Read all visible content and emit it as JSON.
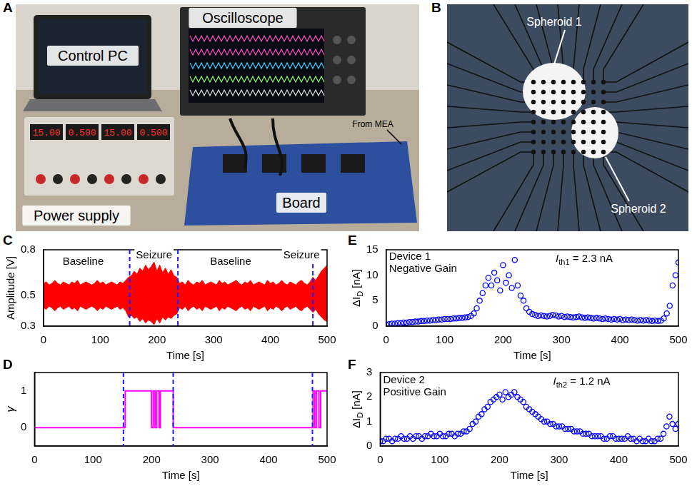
{
  "photo_panels": [
    {
      "panel": "A",
      "labels": {
        "pc": "Control PC",
        "scope": "Oscilloscope",
        "supply": "Power supply",
        "board": "Board",
        "mea": "From MEA"
      },
      "power_supply_display": [
        "15.00",
        "0.500",
        "15.00",
        "0.500"
      ]
    },
    {
      "panel": "B",
      "labels": {
        "s1": "Spheroid 1",
        "s2": "Spheroid 2"
      }
    }
  ],
  "chart_data": [
    {
      "panel": "C",
      "type": "line",
      "x_label": "Time [s]",
      "y_label": {
        "main": "Amplitude [V]"
      },
      "x": [
        0,
        5,
        10,
        15,
        20,
        25,
        30,
        35,
        40,
        45,
        50,
        55,
        60,
        65,
        70,
        75,
        80,
        85,
        90,
        95,
        100,
        105,
        110,
        115,
        120,
        125,
        130,
        135,
        140,
        145,
        150,
        155,
        160,
        165,
        170,
        175,
        180,
        185,
        190,
        195,
        200,
        205,
        210,
        215,
        220,
        225,
        230,
        235,
        240,
        245,
        250,
        255,
        260,
        265,
        270,
        275,
        280,
        285,
        290,
        295,
        300,
        305,
        310,
        315,
        320,
        325,
        330,
        335,
        340,
        345,
        350,
        355,
        360,
        365,
        370,
        375,
        380,
        385,
        390,
        395,
        400,
        405,
        410,
        415,
        420,
        425,
        430,
        435,
        440,
        445,
        450,
        455,
        460,
        465,
        470,
        475,
        480,
        485,
        490,
        495,
        500
      ],
      "series": [
        {
          "type": "line",
          "color": "#ff0000",
          "line_style": "solid",
          "values": [
            0.58,
            0.59,
            0.57,
            0.58,
            0.6,
            0.58,
            0.57,
            0.59,
            0.58,
            0.57,
            0.59,
            0.58,
            0.6,
            0.57,
            0.58,
            0.59,
            0.58,
            0.57,
            0.58,
            0.6,
            0.58,
            0.59,
            0.57,
            0.58,
            0.59,
            0.58,
            0.57,
            0.59,
            0.58,
            0.6,
            0.62,
            0.63,
            0.66,
            0.64,
            0.68,
            0.66,
            0.7,
            0.67,
            0.69,
            0.72,
            0.66,
            0.7,
            0.65,
            0.68,
            0.64,
            0.67,
            0.63,
            0.62,
            0.58,
            0.59,
            0.57,
            0.6,
            0.58,
            0.57,
            0.59,
            0.58,
            0.6,
            0.57,
            0.58,
            0.59,
            0.58,
            0.57,
            0.6,
            0.58,
            0.59,
            0.57,
            0.58,
            0.59,
            0.6,
            0.58,
            0.57,
            0.59,
            0.58,
            0.6,
            0.57,
            0.58,
            0.59,
            0.58,
            0.57,
            0.6,
            0.58,
            0.59,
            0.57,
            0.58,
            0.6,
            0.58,
            0.57,
            0.59,
            0.58,
            0.57,
            0.59,
            0.6,
            0.58,
            0.57,
            0.59,
            0.62,
            0.6,
            0.63,
            0.66,
            0.68,
            0.7
          ]
        },
        {
          "type": "area",
          "color": "#ff0000",
          "line_style": "solid",
          "values": [
            0.42,
            0.41,
            0.43,
            0.42,
            0.4,
            0.42,
            0.43,
            0.41,
            0.42,
            0.43,
            0.41,
            0.42,
            0.4,
            0.43,
            0.42,
            0.41,
            0.42,
            0.43,
            0.42,
            0.4,
            0.42,
            0.41,
            0.43,
            0.42,
            0.41,
            0.42,
            0.43,
            0.41,
            0.42,
            0.4,
            0.36,
            0.37,
            0.35,
            0.36,
            0.33,
            0.35,
            0.32,
            0.34,
            0.33,
            0.31,
            0.35,
            0.32,
            0.36,
            0.34,
            0.36,
            0.35,
            0.37,
            0.38,
            0.42,
            0.41,
            0.43,
            0.4,
            0.42,
            0.43,
            0.41,
            0.42,
            0.4,
            0.43,
            0.42,
            0.41,
            0.42,
            0.43,
            0.4,
            0.42,
            0.41,
            0.43,
            0.42,
            0.41,
            0.4,
            0.42,
            0.43,
            0.41,
            0.42,
            0.4,
            0.43,
            0.42,
            0.41,
            0.42,
            0.43,
            0.4,
            0.42,
            0.41,
            0.43,
            0.42,
            0.4,
            0.42,
            0.43,
            0.41,
            0.42,
            0.43,
            0.41,
            0.4,
            0.42,
            0.43,
            0.41,
            0.39,
            0.41,
            0.38,
            0.36,
            0.34,
            0.33
          ]
        }
      ],
      "xlim": [
        0,
        500
      ],
      "xticks": [
        0,
        100,
        200,
        300,
        400,
        500
      ],
      "ylim": [
        0.3,
        0.8
      ],
      "yticks": [
        0.3,
        0.5,
        0.8
      ],
      "grid": false,
      "event_lines": [
        152,
        237,
        475
      ],
      "annotations": [
        {
          "text": "Baseline",
          "x": 70,
          "y": 0.72
        },
        {
          "text": "Seizure",
          "x": 195,
          "y": 0.765
        },
        {
          "text": "Baseline",
          "x": 330,
          "y": 0.72
        },
        {
          "text": "Seizure",
          "x": 455,
          "y": 0.765
        }
      ]
    },
    {
      "panel": "D",
      "type": "line",
      "x_label": "Time [s]",
      "y_label": {
        "main": "γ"
      },
      "x": [
        0,
        155,
        155,
        200,
        200,
        203,
        203,
        206,
        206,
        209,
        209,
        213,
        213,
        215,
        215,
        237,
        237,
        476,
        476,
        479,
        479,
        482,
        482,
        486,
        486,
        489,
        489,
        500
      ],
      "series": [
        {
          "type": "line",
          "color": "#ff00ff",
          "line_style": "solid",
          "values": [
            0,
            0,
            1,
            1,
            0,
            0,
            1,
            1,
            0,
            0,
            1,
            1,
            0,
            0,
            1,
            1,
            0,
            0,
            1,
            1,
            0,
            0,
            1,
            1,
            0,
            0,
            1,
            1
          ]
        }
      ],
      "xlim": [
        0,
        500
      ],
      "xticks": [
        0,
        100,
        200,
        300,
        400,
        500
      ],
      "ylim": [
        -0.5,
        1.5
      ],
      "yticks": [
        0,
        1
      ],
      "grid": false,
      "event_lines": [
        152,
        237,
        475
      ]
    },
    {
      "panel": "E",
      "type": "scatter",
      "x_label": "Time [s]",
      "y_label": {
        "main": "ΔI",
        "sub": "D",
        "rest": " [nA]"
      },
      "x": [
        0,
        5,
        10,
        15,
        20,
        25,
        30,
        35,
        40,
        45,
        50,
        55,
        60,
        65,
        70,
        75,
        80,
        85,
        90,
        95,
        100,
        105,
        110,
        115,
        120,
        125,
        130,
        135,
        140,
        145,
        150,
        155,
        160,
        165,
        170,
        175,
        180,
        185,
        190,
        195,
        200,
        205,
        210,
        215,
        220,
        225,
        230,
        235,
        240,
        245,
        250,
        255,
        260,
        265,
        270,
        275,
        280,
        285,
        290,
        295,
        300,
        305,
        310,
        315,
        320,
        325,
        330,
        335,
        340,
        345,
        350,
        355,
        360,
        365,
        370,
        375,
        380,
        385,
        390,
        395,
        400,
        405,
        410,
        415,
        420,
        425,
        430,
        435,
        440,
        445,
        450,
        455,
        460,
        465,
        470,
        475,
        480,
        485,
        490,
        495,
        500
      ],
      "series": [
        {
          "color": "#0000ff",
          "marker": "circle",
          "values": [
            0.3,
            0.4,
            0.5,
            0.5,
            0.6,
            0.6,
            0.7,
            0.7,
            0.8,
            0.8,
            0.9,
            0.9,
            1.0,
            1.0,
            1.1,
            1.1,
            1.2,
            1.2,
            1.3,
            1.3,
            1.4,
            1.4,
            1.4,
            1.5,
            1.5,
            1.6,
            1.6,
            1.7,
            1.8,
            2.0,
            2.5,
            3.5,
            5.0,
            6.5,
            8.0,
            9.5,
            8.0,
            10.5,
            9.0,
            7.0,
            12.0,
            8.5,
            10.0,
            7.5,
            13.0,
            8.0,
            6.0,
            5.0,
            3.5,
            2.8,
            2.4,
            2.2,
            2.0,
            2.1,
            2.0,
            1.9,
            2.0,
            2.2,
            2.1,
            1.9,
            2.0,
            1.8,
            1.9,
            1.8,
            1.7,
            1.8,
            1.9,
            1.7,
            1.6,
            1.7,
            1.6,
            1.5,
            1.6,
            1.5,
            1.4,
            1.5,
            1.4,
            1.3,
            1.4,
            1.3,
            1.4,
            1.2,
            1.3,
            1.2,
            1.3,
            1.2,
            1.1,
            1.2,
            1.1,
            1.2,
            1.1,
            1.0,
            1.1,
            1.0,
            1.1,
            1.5,
            2.5,
            4.0,
            8.0,
            10.0,
            12.5
          ]
        }
      ],
      "xlim": [
        0,
        500
      ],
      "xticks": [
        0,
        100,
        200,
        300,
        400,
        500
      ],
      "ylim": [
        0,
        15
      ],
      "yticks": [
        0,
        5,
        10,
        15
      ],
      "grid": false,
      "annotations": [
        {
          "lines": [
            "Device 1",
            "Negative Gain"
          ],
          "x": 5,
          "y": 14.6
        },
        {
          "parts": [
            "I",
            "th1",
            " = 2.3 nA"
          ],
          "x": 290,
          "y": 14.6
        }
      ]
    },
    {
      "panel": "F",
      "type": "scatter",
      "x_label": "Time [s]",
      "y_label": {
        "main": "ΔI",
        "sub": "D",
        "rest": " [nA]"
      },
      "x": [
        0,
        5,
        10,
        15,
        20,
        25,
        30,
        35,
        40,
        45,
        50,
        55,
        60,
        65,
        70,
        75,
        80,
        85,
        90,
        95,
        100,
        105,
        110,
        115,
        120,
        125,
        130,
        135,
        140,
        145,
        150,
        155,
        160,
        165,
        170,
        175,
        180,
        185,
        190,
        195,
        200,
        205,
        210,
        215,
        220,
        225,
        230,
        235,
        240,
        245,
        250,
        255,
        260,
        265,
        270,
        275,
        280,
        285,
        290,
        295,
        300,
        305,
        310,
        315,
        320,
        325,
        330,
        335,
        340,
        345,
        350,
        355,
        360,
        365,
        370,
        375,
        380,
        385,
        390,
        395,
        400,
        405,
        410,
        415,
        420,
        425,
        430,
        435,
        440,
        445,
        450,
        455,
        460,
        465,
        470,
        475,
        480,
        485,
        490,
        495,
        500
      ],
      "series": [
        {
          "color": "#0000ff",
          "marker": "circle",
          "values": [
            0.2,
            0.2,
            0.3,
            0.3,
            0.2,
            0.3,
            0.3,
            0.4,
            0.3,
            0.3,
            0.4,
            0.3,
            0.4,
            0.4,
            0.3,
            0.4,
            0.4,
            0.5,
            0.4,
            0.4,
            0.5,
            0.4,
            0.4,
            0.5,
            0.5,
            0.4,
            0.5,
            0.5,
            0.6,
            0.6,
            0.7,
            0.9,
            1.0,
            1.2,
            1.3,
            1.5,
            1.6,
            1.8,
            1.9,
            2.0,
            2.1,
            1.9,
            2.2,
            2.0,
            2.1,
            2.2,
            2.0,
            1.9,
            1.8,
            1.6,
            1.5,
            1.4,
            1.3,
            1.2,
            1.1,
            1.0,
            1.0,
            0.9,
            0.9,
            0.8,
            0.8,
            0.8,
            0.7,
            0.7,
            0.7,
            0.6,
            0.6,
            0.6,
            0.5,
            0.5,
            0.5,
            0.4,
            0.4,
            0.4,
            0.4,
            0.3,
            0.3,
            0.4,
            0.4,
            0.3,
            0.3,
            0.3,
            0.3,
            0.4,
            0.3,
            0.3,
            0.2,
            0.3,
            0.2,
            0.2,
            0.3,
            0.2,
            0.2,
            0.3,
            0.3,
            0.5,
            0.8,
            1.2,
            0.9,
            0.7,
            0.9
          ]
        }
      ],
      "xlim": [
        0,
        500
      ],
      "xticks": [
        0,
        100,
        200,
        300,
        400,
        500
      ],
      "ylim": [
        0,
        3
      ],
      "yticks": [
        0,
        1,
        2,
        3
      ],
      "grid": false,
      "annotations": [
        {
          "lines": [
            "Device 2",
            "Positive Gain"
          ],
          "x": 5,
          "y": 2.9
        },
        {
          "parts": [
            "I",
            "th2",
            " = 1.2 nA"
          ],
          "x": 290,
          "y": 2.9
        }
      ]
    }
  ]
}
